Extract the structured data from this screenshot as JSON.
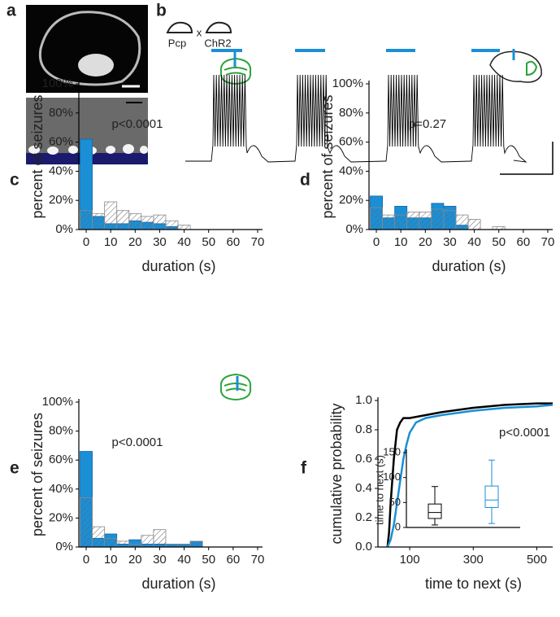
{
  "images": {
    "panel": "a"
  },
  "trace": {
    "panel": "b",
    "labels": [
      "Pcp",
      "x",
      "ChR2"
    ]
  },
  "chart_data": [
    {
      "type": "histogram",
      "panel": "c",
      "annotation": "p<0.0001",
      "xlabel": "duration (s)",
      "ylabel": "percent of seizures",
      "bins": [
        -2.5,
        2.5,
        7.5,
        12.5,
        17.5,
        22.5,
        27.5,
        32.5,
        37.5,
        42.5,
        47.5,
        52.5,
        57.5,
        62.5,
        67.5
      ],
      "series": [
        {
          "color": "#1a8fd6",
          "hatch": false,
          "values": [
            62,
            9,
            4,
            4,
            6,
            5,
            4,
            2,
            0,
            0,
            0,
            0,
            0,
            0
          ]
        },
        {
          "color": "#8a8a8a",
          "hatch": true,
          "values": [
            13,
            11,
            19,
            13,
            11,
            9,
            10,
            6,
            3,
            0,
            0,
            0,
            0,
            0
          ]
        }
      ],
      "xlim": [
        -3,
        72
      ],
      "ylim": [
        0,
        100
      ],
      "xticks": [
        0,
        10,
        20,
        30,
        40,
        50,
        60,
        70
      ],
      "yticks": [
        {
          "value": 0,
          "label": "0%"
        },
        {
          "value": 20,
          "label": "20%"
        },
        {
          "value": 40,
          "label": "40%"
        },
        {
          "value": 60,
          "label": "60%"
        },
        {
          "value": 80,
          "label": "80%"
        },
        {
          "value": 100,
          "label": "100%"
        }
      ]
    },
    {
      "type": "histogram",
      "panel": "d",
      "annotation": "p=0.27",
      "xlabel": "duration (s)",
      "ylabel": "percent of seizures",
      "bins": [
        -2.5,
        2.5,
        7.5,
        12.5,
        17.5,
        22.5,
        27.5,
        32.5,
        37.5,
        42.5,
        47.5,
        52.5,
        57.5,
        62.5,
        67.5
      ],
      "series": [
        {
          "color": "#1a8fd6",
          "hatch": false,
          "values": [
            23,
            8,
            16,
            8,
            8,
            18,
            16,
            3,
            0,
            0,
            0,
            0,
            0,
            0
          ]
        },
        {
          "color": "#8a8a8a",
          "hatch": true,
          "values": [
            15,
            10,
            10,
            12,
            12,
            14,
            13,
            10,
            7,
            0,
            2,
            0,
            0,
            0
          ]
        }
      ],
      "xlim": [
        -3,
        72
      ],
      "ylim": [
        0,
        100
      ],
      "xticks": [
        0,
        10,
        20,
        30,
        40,
        50,
        60,
        70
      ],
      "yticks": [
        {
          "value": 0,
          "label": "0%"
        },
        {
          "value": 20,
          "label": "20%"
        },
        {
          "value": 40,
          "label": "40%"
        },
        {
          "value": 60,
          "label": "60%"
        },
        {
          "value": 80,
          "label": "80%"
        },
        {
          "value": 100,
          "label": "100%"
        }
      ]
    },
    {
      "type": "histogram",
      "panel": "e",
      "annotation": "p<0.0001",
      "xlabel": "duration (s)",
      "ylabel": "percent of seizures",
      "bins": [
        -2.5,
        2.5,
        7.5,
        12.5,
        17.5,
        22.5,
        27.5,
        32.5,
        37.5,
        42.5,
        47.5,
        52.5,
        57.5,
        62.5,
        67.5
      ],
      "series": [
        {
          "color": "#1a8fd6",
          "hatch": false,
          "values": [
            66,
            6,
            9,
            2,
            5,
            2,
            2,
            2,
            2,
            4,
            0,
            0,
            0,
            0
          ]
        },
        {
          "color": "#8a8a8a",
          "hatch": true,
          "values": [
            34,
            14,
            6,
            4,
            2,
            8,
            12,
            2,
            2,
            4,
            0,
            0,
            0,
            0
          ]
        }
      ],
      "xlim": [
        -3,
        72
      ],
      "ylim": [
        0,
        100
      ],
      "xticks": [
        0,
        10,
        20,
        30,
        40,
        50,
        60,
        70
      ],
      "yticks": [
        {
          "value": 0,
          "label": "0%"
        },
        {
          "value": 20,
          "label": "20%"
        },
        {
          "value": 40,
          "label": "40%"
        },
        {
          "value": 60,
          "label": "60%"
        },
        {
          "value": 80,
          "label": "80%"
        },
        {
          "value": 100,
          "label": "100%"
        }
      ]
    },
    {
      "type": "line",
      "panel": "f",
      "annotation": "p<0.0001",
      "xlabel": "time to next (s)",
      "ylabel": "cumulative probability",
      "series": [
        {
          "color": "#000000",
          "x": [
            30,
            35,
            40,
            45,
            50,
            55,
            60,
            70,
            80,
            100,
            150,
            200,
            300,
            400,
            500,
            550
          ],
          "values": [
            0,
            0.1,
            0.3,
            0.45,
            0.6,
            0.7,
            0.8,
            0.85,
            0.88,
            0.88,
            0.9,
            0.92,
            0.95,
            0.97,
            0.98,
            0.98
          ]
        },
        {
          "color": "#1a8fd6",
          "x": [
            30,
            40,
            50,
            60,
            70,
            80,
            90,
            100,
            120,
            150,
            200,
            300,
            400,
            500,
            550
          ],
          "values": [
            0,
            0.05,
            0.15,
            0.3,
            0.45,
            0.6,
            0.7,
            0.78,
            0.85,
            0.88,
            0.9,
            0.93,
            0.95,
            0.96,
            0.97
          ]
        }
      ],
      "xlim": [
        0,
        550
      ],
      "ylim": [
        0,
        1
      ],
      "xticks": [
        100,
        300,
        500
      ],
      "yticks": [
        {
          "value": 0,
          "label": "0.0"
        },
        0.2,
        0.4,
        0.6,
        0.8,
        {
          "value": 1,
          "label": "1.0"
        }
      ]
    },
    {
      "type": "box",
      "ylabel": "time to next (s)",
      "ylim": [
        0,
        150
      ],
      "yticks": [
        0,
        50,
        100,
        150
      ],
      "boxes": [
        {
          "color": "#000000",
          "min": 5,
          "q1": 18,
          "median": 30,
          "q3": 47,
          "max": 82
        },
        {
          "color": "#1a8fd6",
          "min": 8,
          "q1": 40,
          "median": 55,
          "q3": 83,
          "max": 135
        }
      ]
    }
  ]
}
